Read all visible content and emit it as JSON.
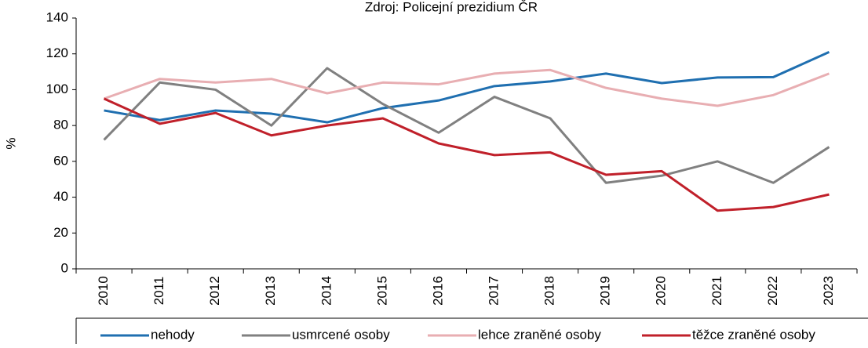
{
  "chart_data": {
    "type": "line",
    "title": "Zdroj: Policejní prezidium ČR",
    "y_label": "%",
    "categories": [
      "2010",
      "2011",
      "2012",
      "2013",
      "2014",
      "2015",
      "2016",
      "2017",
      "2018",
      "2019",
      "2020",
      "2021",
      "2022",
      "2023"
    ],
    "series": [
      {
        "name": "nehody",
        "color": "#1f6fb0",
        "values": [
          88.4,
          83,
          88.4,
          86.6,
          81.8,
          89.7,
          94,
          102,
          104.6,
          109,
          103.7,
          106.8,
          107,
          121
        ]
      },
      {
        "name": "usmrcené osoby",
        "color": "#808080",
        "values": [
          72,
          104,
          100,
          80,
          112,
          92,
          76,
          96,
          84,
          48,
          52,
          60,
          48,
          68
        ]
      },
      {
        "name": "lehce zraněné osoby",
        "color": "#e8aeb2",
        "values": [
          95,
          106,
          104,
          106,
          98,
          104,
          103,
          109,
          111,
          101,
          95,
          91,
          97,
          109
        ]
      },
      {
        "name": "těžce zraněné osoby",
        "color": "#c0202a",
        "values": [
          95,
          81,
          87,
          74.5,
          80,
          84,
          70,
          63.5,
          65,
          52.5,
          54.5,
          32.5,
          34.5,
          41.5
        ]
      }
    ],
    "ylim": [
      0,
      140
    ],
    "yticks": [
      0,
      20,
      40,
      60,
      80,
      100,
      120,
      140
    ],
    "legend": "bottom"
  }
}
